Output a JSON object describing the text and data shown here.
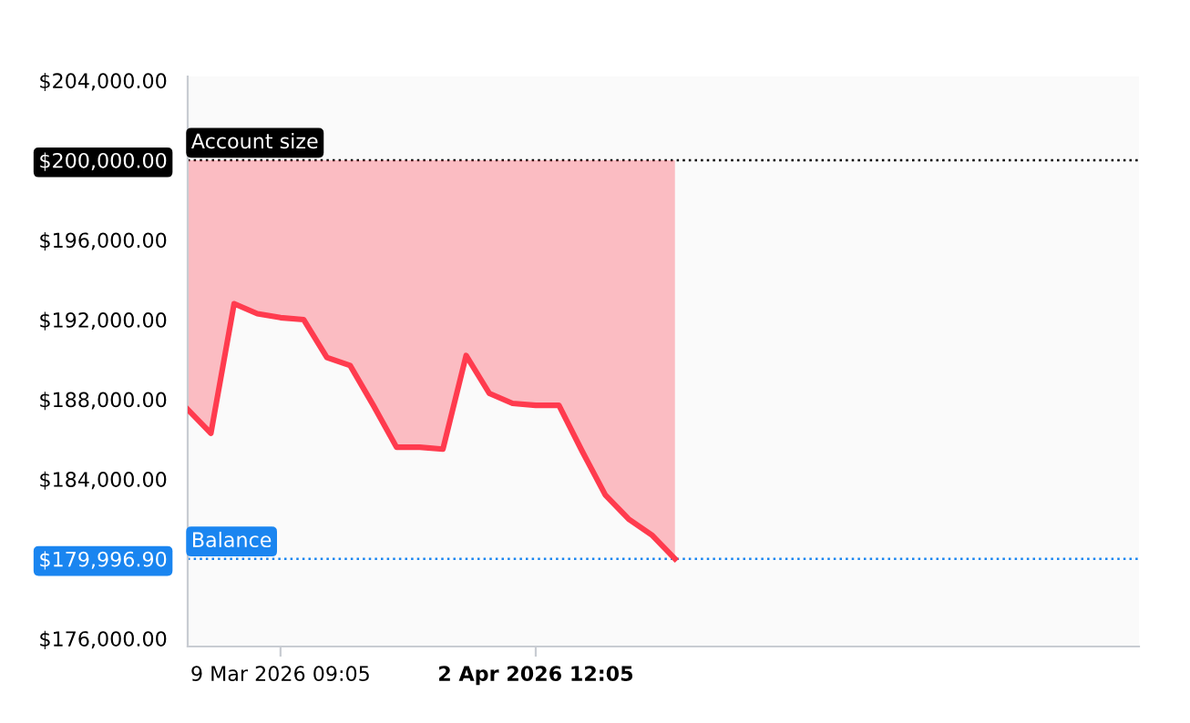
{
  "chart_data": {
    "type": "line",
    "categories": [
      null,
      null,
      null,
      null,
      "9 Mar 2026 09:05",
      null,
      null,
      null,
      null,
      null,
      null,
      null,
      null,
      null,
      null,
      "2 Apr 2026 12:05",
      null,
      null,
      null,
      null,
      null,
      null,
      null,
      null,
      null,
      null,
      null,
      null,
      null,
      null,
      null,
      null,
      null,
      null,
      null,
      null,
      null,
      null,
      null,
      null,
      null,
      null
    ],
    "series": [
      {
        "color": "#ff3b4e",
        "values": [
          187500,
          186300,
          192800,
          192300,
          192100,
          192000,
          190100,
          189700,
          187700,
          185600,
          185600,
          185500,
          190200,
          188300,
          187800,
          187700,
          187700,
          185400,
          183200,
          182000,
          181200,
          179996.9,
          null,
          null,
          null,
          null,
          null,
          null,
          null,
          null,
          null,
          null,
          null,
          null,
          null,
          null,
          null,
          null,
          null,
          null,
          null,
          null
        ],
        "lower": [
          187500,
          186300,
          192800,
          192300,
          192100,
          192000,
          190100,
          189700,
          187700,
          185600,
          185600,
          185500,
          190200,
          188300,
          187800,
          187700,
          187700,
          185400,
          183200,
          182000,
          181200,
          179996.9,
          null,
          null,
          null,
          null,
          null,
          null,
          null,
          null,
          null,
          null,
          null,
          null,
          null,
          null,
          null,
          null,
          null,
          null,
          null,
          null
        ],
        "upper": [
          200000,
          200000,
          200000,
          200000,
          200000,
          200000,
          200000,
          200000,
          200000,
          200000,
          200000,
          200000,
          200000,
          200000,
          200000,
          200000,
          200000,
          200000,
          200000,
          200000,
          200000,
          200000,
          null,
          null,
          null,
          null,
          null,
          null,
          null,
          null,
          null,
          null,
          null,
          null,
          null,
          null,
          null,
          null,
          null,
          null,
          null,
          null
        ]
      }
    ],
    "ylim": [
      175600,
      204200
    ],
    "yticks": [
      {
        "value": 176000,
        "label": "$176,000.00"
      },
      {
        "value": 179996.9,
        "label": "$179,996.90"
      },
      {
        "value": 184000,
        "label": "$184,000.00"
      },
      {
        "value": 188000,
        "label": "$188,000.00"
      },
      {
        "value": 192000,
        "label": "$192,000.00"
      },
      {
        "value": 196000,
        "label": "$196,000.00"
      },
      {
        "value": 200000,
        "label": "$200,000.00"
      },
      {
        "value": 204000,
        "label": "$204,000.00"
      }
    ],
    "ref_lines": [
      {
        "axis": "y",
        "value": 200000,
        "label": "Account size",
        "color": "#000000",
        "line_style": "dotted"
      },
      {
        "axis": "y",
        "value": 179996.9,
        "label": "Balance",
        "color": "#1a85f0",
        "line_style": "dotted"
      }
    ],
    "grid": false,
    "legend": false,
    "marker": "none",
    "line_style": "solid"
  }
}
